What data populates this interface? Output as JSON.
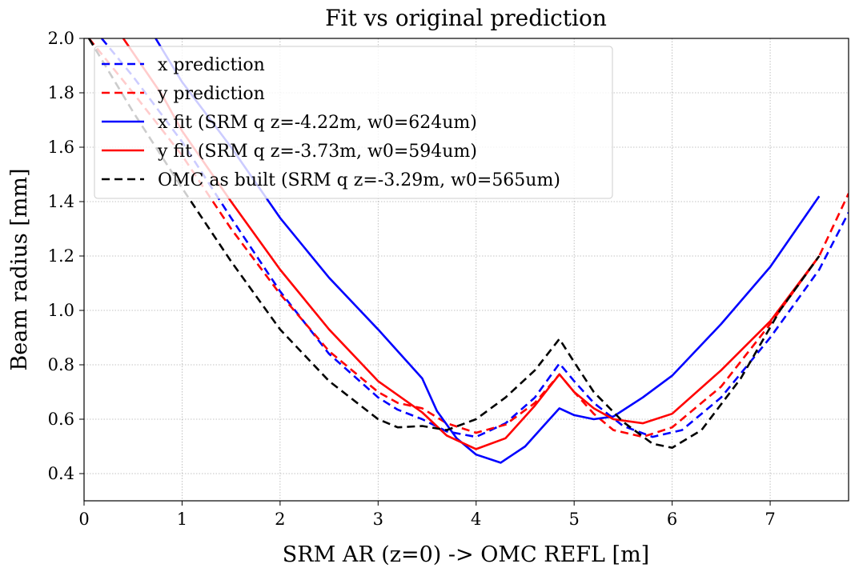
{
  "chart_data": {
    "type": "line",
    "title": "Fit vs original prediction",
    "xlabel": "SRM AR (z=0) -> OMC REFL [m]",
    "ylabel": "Beam radius [mm]",
    "xlim": [
      0,
      7.8
    ],
    "ylim": [
      0.3,
      2.0
    ],
    "xticks": [
      0,
      1,
      2,
      3,
      4,
      5,
      6,
      7
    ],
    "yticks": [
      0.4,
      0.6,
      0.8,
      1.0,
      1.2,
      1.4,
      1.6,
      1.8,
      2.0
    ],
    "xtick_labels": [
      "0",
      "1",
      "2",
      "3",
      "4",
      "5",
      "6",
      "7"
    ],
    "ytick_labels": [
      "0.4",
      "0.6",
      "0.8",
      "1.0",
      "1.2",
      "1.4",
      "1.6",
      "1.8",
      "2.0"
    ],
    "grid": true,
    "legend_position": "top-left",
    "series": [
      {
        "name": "x prediction",
        "color": "#0000ff",
        "style": "dashed",
        "points": [
          [
            0.18,
            2.0
          ],
          [
            0.5,
            1.86
          ],
          [
            1.0,
            1.62
          ],
          [
            1.5,
            1.34
          ],
          [
            2.0,
            1.07
          ],
          [
            2.5,
            0.84
          ],
          [
            3.0,
            0.68
          ],
          [
            3.2,
            0.635
          ],
          [
            3.45,
            0.6
          ],
          [
            3.7,
            0.555
          ],
          [
            4.0,
            0.535
          ],
          [
            4.3,
            0.585
          ],
          [
            4.6,
            0.68
          ],
          [
            4.85,
            0.805
          ],
          [
            5.0,
            0.74
          ],
          [
            5.2,
            0.66
          ],
          [
            5.5,
            0.575
          ],
          [
            5.8,
            0.535
          ],
          [
            6.1,
            0.56
          ],
          [
            6.5,
            0.68
          ],
          [
            7.0,
            0.9
          ],
          [
            7.5,
            1.15
          ],
          [
            7.8,
            1.36
          ]
        ]
      },
      {
        "name": "y prediction",
        "color": "#ff0000",
        "style": "dashed",
        "points": [
          [
            0.05,
            2.0
          ],
          [
            0.5,
            1.8
          ],
          [
            1.0,
            1.57
          ],
          [
            1.5,
            1.3
          ],
          [
            2.0,
            1.06
          ],
          [
            2.5,
            0.85
          ],
          [
            3.0,
            0.7
          ],
          [
            3.2,
            0.66
          ],
          [
            3.45,
            0.64
          ],
          [
            3.7,
            0.585
          ],
          [
            4.0,
            0.55
          ],
          [
            4.3,
            0.58
          ],
          [
            4.6,
            0.66
          ],
          [
            4.85,
            0.765
          ],
          [
            5.0,
            0.7
          ],
          [
            5.2,
            0.62
          ],
          [
            5.4,
            0.56
          ],
          [
            5.7,
            0.535
          ],
          [
            6.0,
            0.57
          ],
          [
            6.5,
            0.72
          ],
          [
            7.0,
            0.95
          ],
          [
            7.5,
            1.2
          ],
          [
            7.8,
            1.43
          ]
        ]
      },
      {
        "name": "x fit (SRM q z=-4.22m, w0=624um)",
        "color": "#0000ff",
        "style": "solid",
        "points": [
          [
            0.73,
            2.0
          ],
          [
            1.0,
            1.84
          ],
          [
            1.5,
            1.6
          ],
          [
            2.0,
            1.34
          ],
          [
            2.5,
            1.12
          ],
          [
            3.0,
            0.93
          ],
          [
            3.45,
            0.75
          ],
          [
            3.6,
            0.63
          ],
          [
            3.8,
            0.53
          ],
          [
            4.0,
            0.47
          ],
          [
            4.25,
            0.44
          ],
          [
            4.5,
            0.5
          ],
          [
            4.7,
            0.58
          ],
          [
            4.85,
            0.64
          ],
          [
            5.0,
            0.615
          ],
          [
            5.2,
            0.6
          ],
          [
            5.4,
            0.61
          ],
          [
            5.7,
            0.68
          ],
          [
            6.0,
            0.76
          ],
          [
            6.5,
            0.95
          ],
          [
            7.0,
            1.16
          ],
          [
            7.5,
            1.42
          ]
        ]
      },
      {
        "name": "y fit (SRM q z=-3.73m, w0=594um)",
        "color": "#ff0000",
        "style": "solid",
        "points": [
          [
            0.4,
            2.0
          ],
          [
            0.8,
            1.79
          ],
          [
            1.0,
            1.66
          ],
          [
            1.5,
            1.4
          ],
          [
            2.0,
            1.15
          ],
          [
            2.5,
            0.93
          ],
          [
            3.0,
            0.74
          ],
          [
            3.45,
            0.625
          ],
          [
            3.7,
            0.54
          ],
          [
            4.0,
            0.49
          ],
          [
            4.3,
            0.53
          ],
          [
            4.6,
            0.65
          ],
          [
            4.85,
            0.765
          ],
          [
            5.0,
            0.7
          ],
          [
            5.2,
            0.64
          ],
          [
            5.4,
            0.6
          ],
          [
            5.7,
            0.585
          ],
          [
            6.0,
            0.62
          ],
          [
            6.5,
            0.78
          ],
          [
            7.0,
            0.96
          ],
          [
            7.5,
            1.2
          ]
        ]
      },
      {
        "name": "OMC as built (SRM q z=-3.29m, w0=565um)",
        "color": "#000000",
        "style": "dashed",
        "points": [
          [
            0.05,
            2.0
          ],
          [
            0.5,
            1.73
          ],
          [
            1.0,
            1.45
          ],
          [
            1.5,
            1.18
          ],
          [
            2.0,
            0.93
          ],
          [
            2.5,
            0.74
          ],
          [
            3.0,
            0.6
          ],
          [
            3.2,
            0.57
          ],
          [
            3.45,
            0.575
          ],
          [
            3.7,
            0.56
          ],
          [
            4.0,
            0.6
          ],
          [
            4.3,
            0.68
          ],
          [
            4.6,
            0.78
          ],
          [
            4.85,
            0.895
          ],
          [
            5.0,
            0.81
          ],
          [
            5.2,
            0.7
          ],
          [
            5.5,
            0.59
          ],
          [
            5.8,
            0.51
          ],
          [
            6.0,
            0.495
          ],
          [
            6.3,
            0.56
          ],
          [
            6.7,
            0.75
          ],
          [
            7.1,
            1.0
          ],
          [
            7.5,
            1.2
          ]
        ]
      }
    ]
  }
}
